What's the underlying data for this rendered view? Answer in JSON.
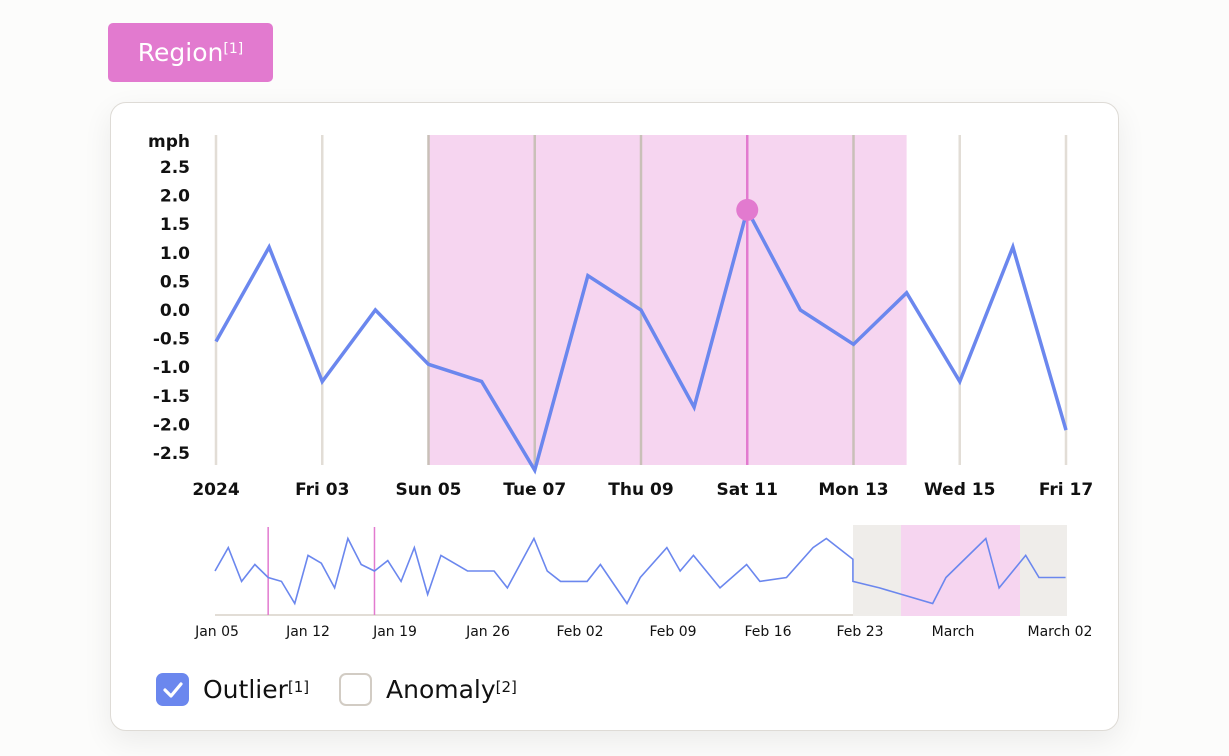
{
  "header": {
    "region_button_label": "Region",
    "region_button_ref": "[1]"
  },
  "colors": {
    "accent": "#e27acf",
    "band": "#f6d5f0",
    "line": "#6b87ee",
    "grid": "#e2ddd6",
    "grid_band": "#c9c0b8",
    "brush": "#efedea"
  },
  "chart_data": [
    {
      "type": "line",
      "ylabel": "mph",
      "ylim": [
        -2.5,
        2.5
      ],
      "yticks": [
        "2.5",
        "2.0",
        "1.5",
        "1.0",
        "0.5",
        "0.0",
        "-0.5",
        "-1.0",
        "-1.5",
        "-2.0",
        "-2.5"
      ],
      "xticks": [
        "2024",
        "Fri 03",
        "Sun 05",
        "Tue 07",
        "Thu 09",
        "Sat 11",
        "Mon 13",
        "Wed 15",
        "Fri 17"
      ],
      "x": [
        "2024-01-01",
        "2024-01-02",
        "2024-01-03",
        "2024-01-04",
        "2024-01-05",
        "2024-01-06",
        "2024-01-07",
        "2024-01-08",
        "2024-01-09",
        "2024-01-10",
        "2024-01-11",
        "2024-01-12",
        "2024-01-13",
        "2024-01-14",
        "2024-01-15",
        "2024-01-16",
        "2024-01-17"
      ],
      "values": [
        -0.55,
        1.1,
        -1.25,
        0.0,
        -0.95,
        -1.25,
        -2.8,
        0.6,
        0.0,
        -1.7,
        1.75,
        0.0,
        -0.6,
        0.3,
        -1.25,
        1.1,
        -2.1
      ],
      "highlight_region": [
        "2024-01-05",
        "2024-01-14"
      ],
      "highlight_point": {
        "x": "2024-01-11",
        "value": 1.75
      },
      "grid": "vertical"
    },
    {
      "type": "line",
      "xticks": [
        "Jan 05",
        "Jan 12",
        "Jan 19",
        "Jan 26",
        "Feb 02",
        "Feb 09",
        "Feb 16",
        "Feb 23",
        "March",
        "March 02"
      ],
      "x": [
        "2024-01-05",
        "2024-01-06",
        "2024-01-07",
        "2024-01-08",
        "2024-01-09",
        "2024-01-10",
        "2024-01-11",
        "2024-01-12",
        "2024-01-13",
        "2024-01-14",
        "2024-01-15",
        "2024-01-16",
        "2024-01-17",
        "2024-01-18",
        "2024-01-19",
        "2024-01-20",
        "2024-01-21",
        "2024-01-22",
        "2024-01-24",
        "2024-01-26",
        "2024-01-27",
        "2024-01-29",
        "2024-01-30",
        "2024-01-31",
        "2024-02-02",
        "2024-02-03",
        "2024-02-05",
        "2024-02-06",
        "2024-02-08",
        "2024-02-09",
        "2024-02-10",
        "2024-02-12",
        "2024-02-14",
        "2024-02-15",
        "2024-02-17",
        "2024-02-19",
        "2024-02-20",
        "2024-02-22",
        "2024-02-22",
        "2024-02-24",
        "2024-02-28",
        "2024-02-29",
        "2024-03-01",
        "2024-03-03",
        "2024-03-04",
        "2024-03-06",
        "2024-03-07",
        "2024-03-09"
      ],
      "values": [
        0,
        1.8,
        -0.8,
        0.5,
        -0.5,
        -0.8,
        -2.5,
        1.2,
        0.6,
        -1.3,
        2.5,
        0.5,
        0,
        0.8,
        -0.8,
        1.8,
        -1.8,
        1.2,
        0,
        0,
        -1.3,
        2.5,
        0,
        -0.8,
        -0.8,
        0.5,
        -2.5,
        -0.5,
        1.8,
        0,
        1.2,
        -1.3,
        0.5,
        -0.8,
        -0.5,
        1.8,
        2.5,
        0.9,
        -0.8,
        -1.3,
        -2.5,
        -0.5,
        0.5,
        2.5,
        -1.3,
        1.2,
        -0.5,
        -0.5
      ],
      "markers": [
        "2024-01-09",
        "2024-01-17"
      ]
    }
  ],
  "legend": [
    {
      "label": "Outlier",
      "ref": "[1]",
      "checked": true
    },
    {
      "label": "Anomaly",
      "ref": "[2]",
      "checked": false
    }
  ]
}
